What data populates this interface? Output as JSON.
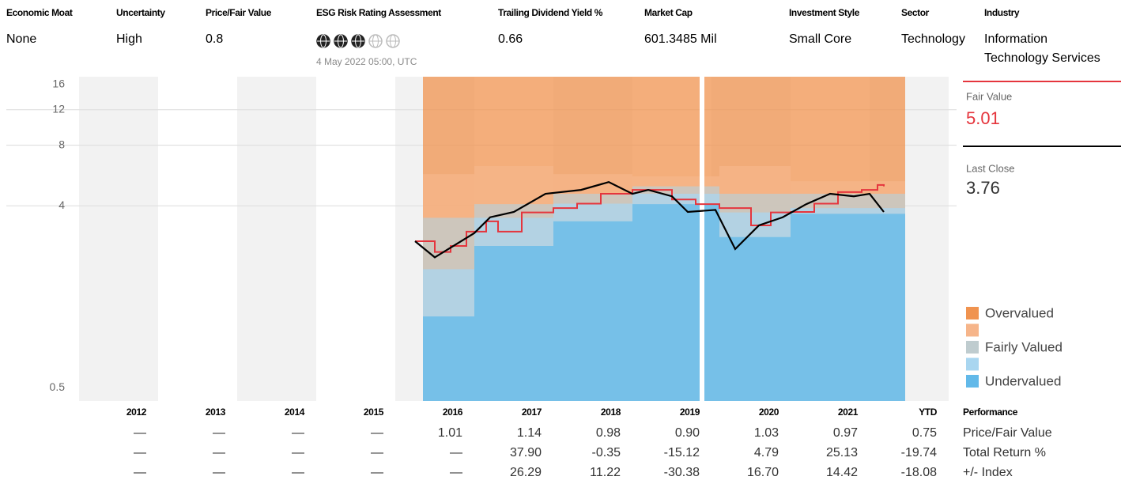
{
  "header": {
    "columns": [
      {
        "label": "Economic Moat",
        "value": "None"
      },
      {
        "label": "Uncertainty",
        "value": "High"
      },
      {
        "label": "Price/Fair Value",
        "value": "0.8"
      },
      {
        "label": "ESG Risk Rating Assessment",
        "globes": 3,
        "note": "4 May 2022 05:00, UTC"
      },
      {
        "label": "Trailing Dividend Yield %",
        "value": "0.66"
      },
      {
        "label": "Market Cap",
        "value": "601.3485 Mil"
      },
      {
        "label": "Investment Style",
        "value": "Small Core"
      },
      {
        "label": "Sector",
        "value": "Technology"
      },
      {
        "label": "Industry",
        "value": "Information Technology Services"
      }
    ]
  },
  "summary": {
    "fair_value_label": "Fair Value",
    "fair_value": 5.01,
    "fair_value_color": "#e5353d",
    "last_close_label": "Last Close",
    "last_close": 3.76
  },
  "chart_data": {
    "type": "valuation",
    "log_scale": true,
    "grid": true,
    "xlim": [
      2011,
      2023
    ],
    "ylim": [
      0.43,
      17.5
    ],
    "yticks": [
      0.5,
      4,
      8,
      12,
      16
    ],
    "categories": [
      "2012",
      "2013",
      "2014",
      "2015",
      "2016",
      "2017",
      "2018",
      "2019",
      "2020",
      "2021",
      "YTD"
    ],
    "band_x": [
      2016.35,
      2017,
      2018,
      2019,
      2020.1,
      2021,
      2022.45
    ],
    "bands": [
      {
        "name": "Overvalued",
        "color": "#f0934f"
      },
      {
        "name": null,
        "color": "#f6b58a",
        "values": [
          5.75,
          6.3,
          5.75,
          5.6,
          6.3,
          5.3,
          6.6
        ]
      },
      {
        "name": "Fairly Valued",
        "color": "#bfcccf",
        "values": [
          3.49,
          4.08,
          4.59,
          5.0,
          4.59,
          4.59,
          5.6
        ]
      },
      {
        "name": null,
        "color": "#a9d6f0",
        "values": [
          1.94,
          3.49,
          4.1,
          4.59,
          3.71,
          3.9,
          4.8
        ]
      },
      {
        "name": "Undervalued",
        "color": "#62b9e9",
        "values": [
          1.13,
          2.53,
          3.35,
          4.08,
          2.8,
          3.65,
          3.9
        ]
      }
    ],
    "price": {
      "color": "#000000",
      "x": [
        2016.25,
        2016.5,
        2017.0,
        2017.2,
        2017.5,
        2017.9,
        2018.35,
        2018.7,
        2019.0,
        2019.2,
        2019.5,
        2019.7,
        2020.05,
        2020.3,
        2020.6,
        2020.9,
        2021.2,
        2021.5,
        2021.8,
        2022.0,
        2022.18
      ],
      "values": [
        2.67,
        2.22,
        2.93,
        3.51,
        3.73,
        4.59,
        4.8,
        5.25,
        4.59,
        4.8,
        4.46,
        3.73,
        3.82,
        2.44,
        3.2,
        3.51,
        4.08,
        4.59,
        4.46,
        4.59,
        3.73
      ]
    },
    "fair_value": {
      "color": "#e5353d",
      "x": [
        2016.25,
        2016.5,
        2016.7,
        2016.9,
        2017.15,
        2017.3,
        2017.6,
        2018.0,
        2018.3,
        2018.6,
        2019.0,
        2019.5,
        2019.8,
        2020.1,
        2020.5,
        2020.75,
        2021.0,
        2021.3,
        2021.6,
        2021.9,
        2022.1,
        2022.18
      ],
      "values": [
        2.67,
        2.36,
        2.53,
        2.98,
        3.35,
        2.98,
        3.71,
        3.9,
        4.1,
        4.59,
        4.8,
        4.3,
        4.08,
        3.9,
        3.2,
        3.71,
        3.73,
        4.1,
        4.68,
        4.8,
        5.08,
        5.0
      ]
    }
  },
  "table": {
    "header": "Performance",
    "rows": [
      {
        "label": "Price/Fair Value",
        "cells": [
          "—",
          "—",
          "—",
          "—",
          "1.01",
          "1.14",
          "0.98",
          "0.90",
          "1.03",
          "0.97",
          "0.75"
        ]
      },
      {
        "label": "Total Return %",
        "cells": [
          "—",
          "—",
          "—",
          "—",
          "—",
          "37.90",
          "-0.35",
          "-15.12",
          "4.79",
          "25.13",
          "-19.74"
        ]
      },
      {
        "label": "+/- Index",
        "cells": [
          "—",
          "—",
          "—",
          "—",
          "—",
          "26.29",
          "11.22",
          "-30.38",
          "16.70",
          "14.42",
          "-18.08"
        ]
      }
    ]
  }
}
